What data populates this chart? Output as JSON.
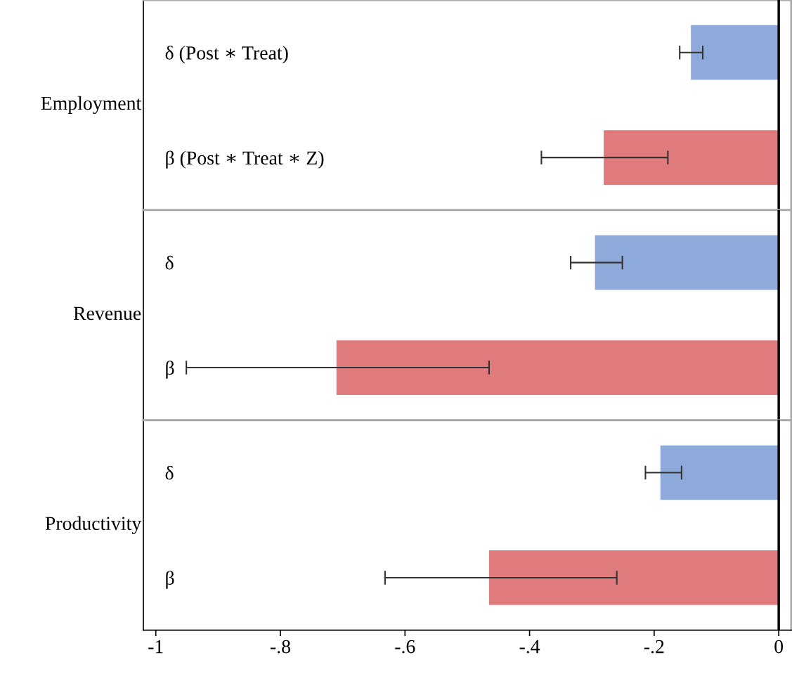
{
  "chart_data": [
    {
      "type": "bar",
      "orientation": "horizontal",
      "ylabel": "Employment",
      "categories": [
        "δ (Post ∗ Treat)",
        "β (Post ∗ Treat ∗ Z)"
      ],
      "values": [
        -0.141,
        -0.281
      ],
      "colors": [
        "#8eaadb",
        "#e07b7d"
      ],
      "errors": [
        [
          -0.159,
          -0.122
        ],
        [
          -0.381,
          -0.178
        ]
      ],
      "xlim": [
        -1.02,
        0.02
      ],
      "ref_lines": [
        {
          "axis": "x",
          "value": 0,
          "label": null,
          "color": "#000000"
        }
      ],
      "tick_labels": "y"
    },
    {
      "type": "bar",
      "orientation": "horizontal",
      "ylabel": "Revenue",
      "categories": [
        "δ",
        "β"
      ],
      "values": [
        -0.295,
        -0.71
      ],
      "colors": [
        "#8eaadb",
        "#e07b7d"
      ],
      "errors": [
        [
          -0.334,
          -0.251
        ],
        [
          -0.951,
          -0.465
        ]
      ],
      "xlim": [
        -1.02,
        0.02
      ],
      "ref_lines": [
        {
          "axis": "x",
          "value": 0,
          "label": null,
          "color": "#000000"
        }
      ],
      "tick_labels": "y"
    },
    {
      "type": "bar",
      "orientation": "horizontal",
      "ylabel": "Productivity",
      "categories": [
        "δ",
        "β"
      ],
      "values": [
        -0.19,
        -0.465
      ],
      "colors": [
        "#8eaadb",
        "#e07b7d"
      ],
      "errors": [
        [
          -0.214,
          -0.156
        ],
        [
          -0.632,
          -0.26
        ]
      ],
      "xlim": [
        -1.02,
        0.02
      ],
      "xticks": [
        {
          "value": -1,
          "label": "-1"
        },
        {
          "value": -0.8,
          "label": "-.8"
        },
        {
          "value": -0.6,
          "label": "-.6"
        },
        {
          "value": -0.4,
          "label": "-.4"
        },
        {
          "value": -0.2,
          "label": "-.2"
        },
        {
          "value": 0,
          "label": "0"
        }
      ],
      "ref_lines": [
        {
          "axis": "x",
          "value": 0,
          "label": null,
          "color": "#000000"
        }
      ]
    }
  ]
}
